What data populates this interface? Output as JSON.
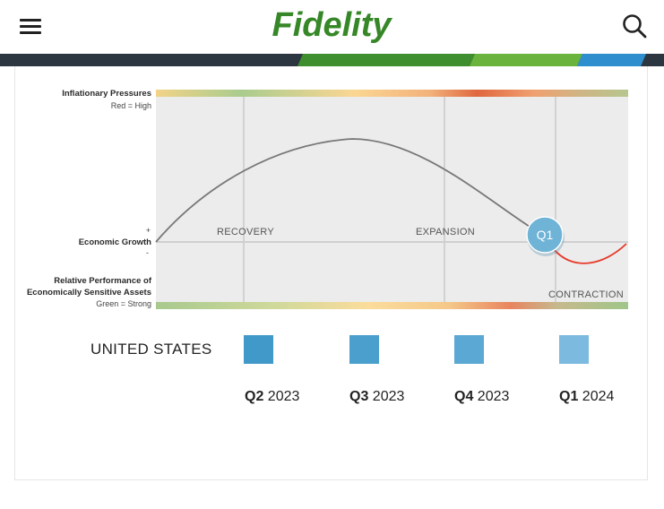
{
  "header": {
    "brand": "Fidelity",
    "menu_icon": "hamburger-menu-icon",
    "search_icon": "search-icon"
  },
  "colors": {
    "brand_green": "#368727",
    "stripe_dark": "#2c3641",
    "stripe_green": "#3e8e2f",
    "stripe_light_green": "#6ab43e",
    "stripe_blue": "#2f8fce",
    "curve_gray": "#777777",
    "curve_red": "#e53a2a",
    "marker_blue": "#6fb3d6"
  },
  "chart_data": {
    "type": "line",
    "title": "",
    "left_labels": {
      "inflation_title": "Inflationary Pressures",
      "inflation_legend": "Red = High",
      "growth_plus": "+",
      "growth_title": "Economic Growth",
      "growth_minus": "-",
      "performance_title_1": "Relative Performance of",
      "performance_title_2": "Economically Sensitive Assets",
      "performance_legend": "Green = Strong"
    },
    "phases": [
      "RECOVERY",
      "EXPANSION",
      "CONTRACTION"
    ],
    "marker": {
      "label": "Q1",
      "phase": "late-cycle / contraction boundary"
    },
    "series": [
      {
        "style": "gray",
        "x": [
          0,
          0.2,
          0.42,
          0.6,
          0.82
        ],
        "y": [
          0,
          0.6,
          1.0,
          0.67,
          0.05
        ]
      },
      {
        "style": "red",
        "x": [
          0.82,
          0.86,
          0.92,
          1.0
        ],
        "y": [
          0.05,
          -0.35,
          -0.45,
          0.0
        ]
      }
    ]
  },
  "history": {
    "country": "UNITED STATES",
    "quarters": [
      {
        "q": "Q2",
        "year": "2023",
        "color": "#4199c9"
      },
      {
        "q": "Q3",
        "year": "2023",
        "color": "#4a9fcc"
      },
      {
        "q": "Q4",
        "year": "2023",
        "color": "#5aa8d3"
      },
      {
        "q": "Q1",
        "year": "2024",
        "color": "#7cbadf"
      }
    ]
  }
}
